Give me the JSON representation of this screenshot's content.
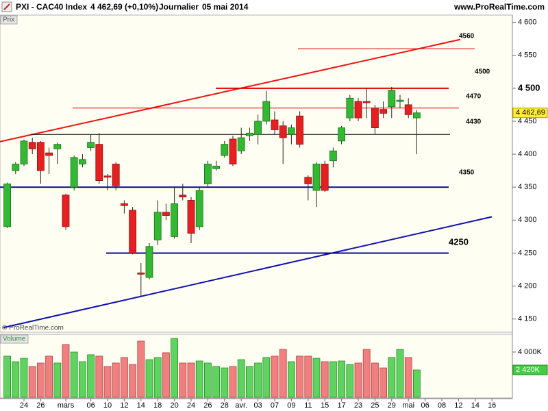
{
  "header": {
    "title": "PXI - CAC40 Index",
    "quote": "4 462,69 (+0,10%)",
    "period": "Journalier",
    "date": "05 mai 2014",
    "site": "www.ProRealTime.com"
  },
  "chart_data": {
    "type": "candlestick",
    "panel_label": "Prix",
    "categories": [
      null,
      null,
      "24",
      null,
      "26",
      null,
      null,
      "mars",
      null,
      null,
      "06",
      null,
      "10",
      null,
      "12",
      null,
      "14",
      null,
      "18",
      null,
      "20",
      null,
      "24",
      null,
      "26",
      null,
      "28",
      null,
      "avr.",
      null,
      "03",
      null,
      "07",
      null,
      "09",
      null,
      "11",
      null,
      "15",
      null,
      "17",
      null,
      "23",
      null,
      "25",
      null,
      "29",
      null,
      "mai",
      null,
      "06",
      null,
      "08",
      null,
      "12",
      null,
      "14",
      null,
      "16"
    ],
    "open": [
      4290,
      4375,
      4385,
      4418,
      4418,
      4402,
      4408,
      4338,
      4350,
      4385,
      4410,
      4415,
      4367,
      4385,
      4325,
      4315,
      4220,
      4213,
      4270,
      4312,
      4275,
      4338,
      4330,
      4290,
      4355,
      4378,
      4398,
      4423,
      4405,
      4428,
      4430,
      4450,
      4452,
      4443,
      4430,
      4458,
      4365,
      4345,
      4385,
      4390,
      4420,
      4455,
      4480,
      4480,
      4470,
      4468,
      4472,
      4480,
      4475,
      4455,
      null,
      null,
      null,
      null,
      null,
      null,
      null,
      null,
      null
    ],
    "high": [
      4357,
      4388,
      4422,
      4425,
      4420,
      4410,
      4418,
      4340,
      4398,
      4400,
      4430,
      4432,
      4370,
      4388,
      4330,
      4320,
      4235,
      4265,
      4330,
      4325,
      4350,
      4355,
      4335,
      4350,
      4390,
      4390,
      4420,
      4428,
      4440,
      4440,
      4460,
      4496,
      4465,
      4450,
      4445,
      4465,
      4368,
      4388,
      4390,
      4410,
      4443,
      4490,
      4485,
      4500,
      4475,
      4480,
      4502,
      4490,
      4485,
      4467,
      null,
      null,
      null,
      null,
      null,
      null,
      null,
      null,
      null
    ],
    "low": [
      4288,
      4370,
      4382,
      4400,
      4355,
      4370,
      4385,
      4285,
      4345,
      4380,
      4405,
      4355,
      4345,
      4345,
      4310,
      4248,
      4183,
      4210,
      4262,
      4300,
      4272,
      4330,
      4265,
      4285,
      4350,
      4375,
      4395,
      4382,
      4400,
      4420,
      4415,
      4445,
      4430,
      4385,
      4415,
      4410,
      4330,
      4320,
      4343,
      4380,
      4415,
      4450,
      4450,
      4455,
      4430,
      4455,
      4455,
      4470,
      4455,
      4400,
      null,
      null,
      null,
      null,
      null,
      null,
      null,
      null,
      null
    ],
    "close": [
      4355,
      4385,
      4420,
      4408,
      4375,
      4398,
      4415,
      4290,
      4395,
      4392,
      4418,
      4360,
      4365,
      4352,
      4322,
      4250,
      4218,
      4260,
      4312,
      4307,
      4325,
      4335,
      4280,
      4345,
      4385,
      4382,
      4415,
      4385,
      4425,
      4432,
      4450,
      4480,
      4437,
      4425,
      4440,
      4415,
      4355,
      4385,
      4345,
      4405,
      4440,
      4485,
      4455,
      4478,
      4440,
      4462,
      4497,
      4482,
      4460,
      4462.69,
      null,
      null,
      null,
      null,
      null,
      null,
      null,
      null,
      null
    ],
    "ylim": [
      4131,
      4611
    ],
    "yticks": [
      {
        "value": 4150,
        "label": "4 150"
      },
      {
        "value": 4200,
        "label": "4 200"
      },
      {
        "value": 4250,
        "label": "4 250"
      },
      {
        "value": 4300,
        "label": "4 300"
      },
      {
        "value": 4350,
        "label": "4 350"
      },
      {
        "value": 4400,
        "label": "4 400"
      },
      {
        "value": 4450,
        "label": "4 450"
      },
      {
        "value": 4500,
        "label": "4 500"
      },
      {
        "value": 4550,
        "label": "4 550"
      },
      {
        "value": 4600,
        "label": "4 600"
      }
    ],
    "up_color": "#33b833",
    "down_color": "#e62020",
    "levels": [
      {
        "value": 4560,
        "color": "#e00000"
      },
      {
        "value": 4500,
        "color": "#e00000"
      },
      {
        "value": 4470,
        "color": "#e00000"
      },
      {
        "value": 4430,
        "color": "#000000"
      },
      {
        "value": 4350,
        "color": "#0a0a90"
      },
      {
        "value": 4250,
        "color": "#0a0a90"
      }
    ],
    "trendlines": [
      {
        "values": [
          4419,
          4574
        ],
        "color": "#ee1111"
      },
      {
        "values": [
          4137,
          4305
        ],
        "color": "#1010b0"
      }
    ],
    "last_close_label": "4 462,69",
    "volume": {
      "label": "Volume",
      "values": [
        3640,
        3150,
        3450,
        2730,
        3030,
        3640,
        3030,
        4670,
        4000,
        3150,
        3760,
        3640,
        2730,
        3030,
        3520,
        2900,
        4970,
        3330,
        3520,
        3940,
        5210,
        3030,
        3030,
        3210,
        3030,
        2730,
        2600,
        2730,
        3330,
        2730,
        3030,
        3520,
        3640,
        4240,
        3150,
        3640,
        3640,
        3450,
        3150,
        3150,
        3210,
        2900,
        3030,
        4240,
        3030,
        2600,
        3520,
        4240,
        3520,
        2420,
        null,
        null,
        null,
        null,
        null,
        null,
        null,
        null,
        null
      ],
      "ylim": [
        0,
        5450
      ],
      "yticks": [
        {
          "value": 4000,
          "label": "4 000K"
        }
      ],
      "last_label": "2 420K"
    },
    "copyright": "© ProRealTime.com"
  }
}
